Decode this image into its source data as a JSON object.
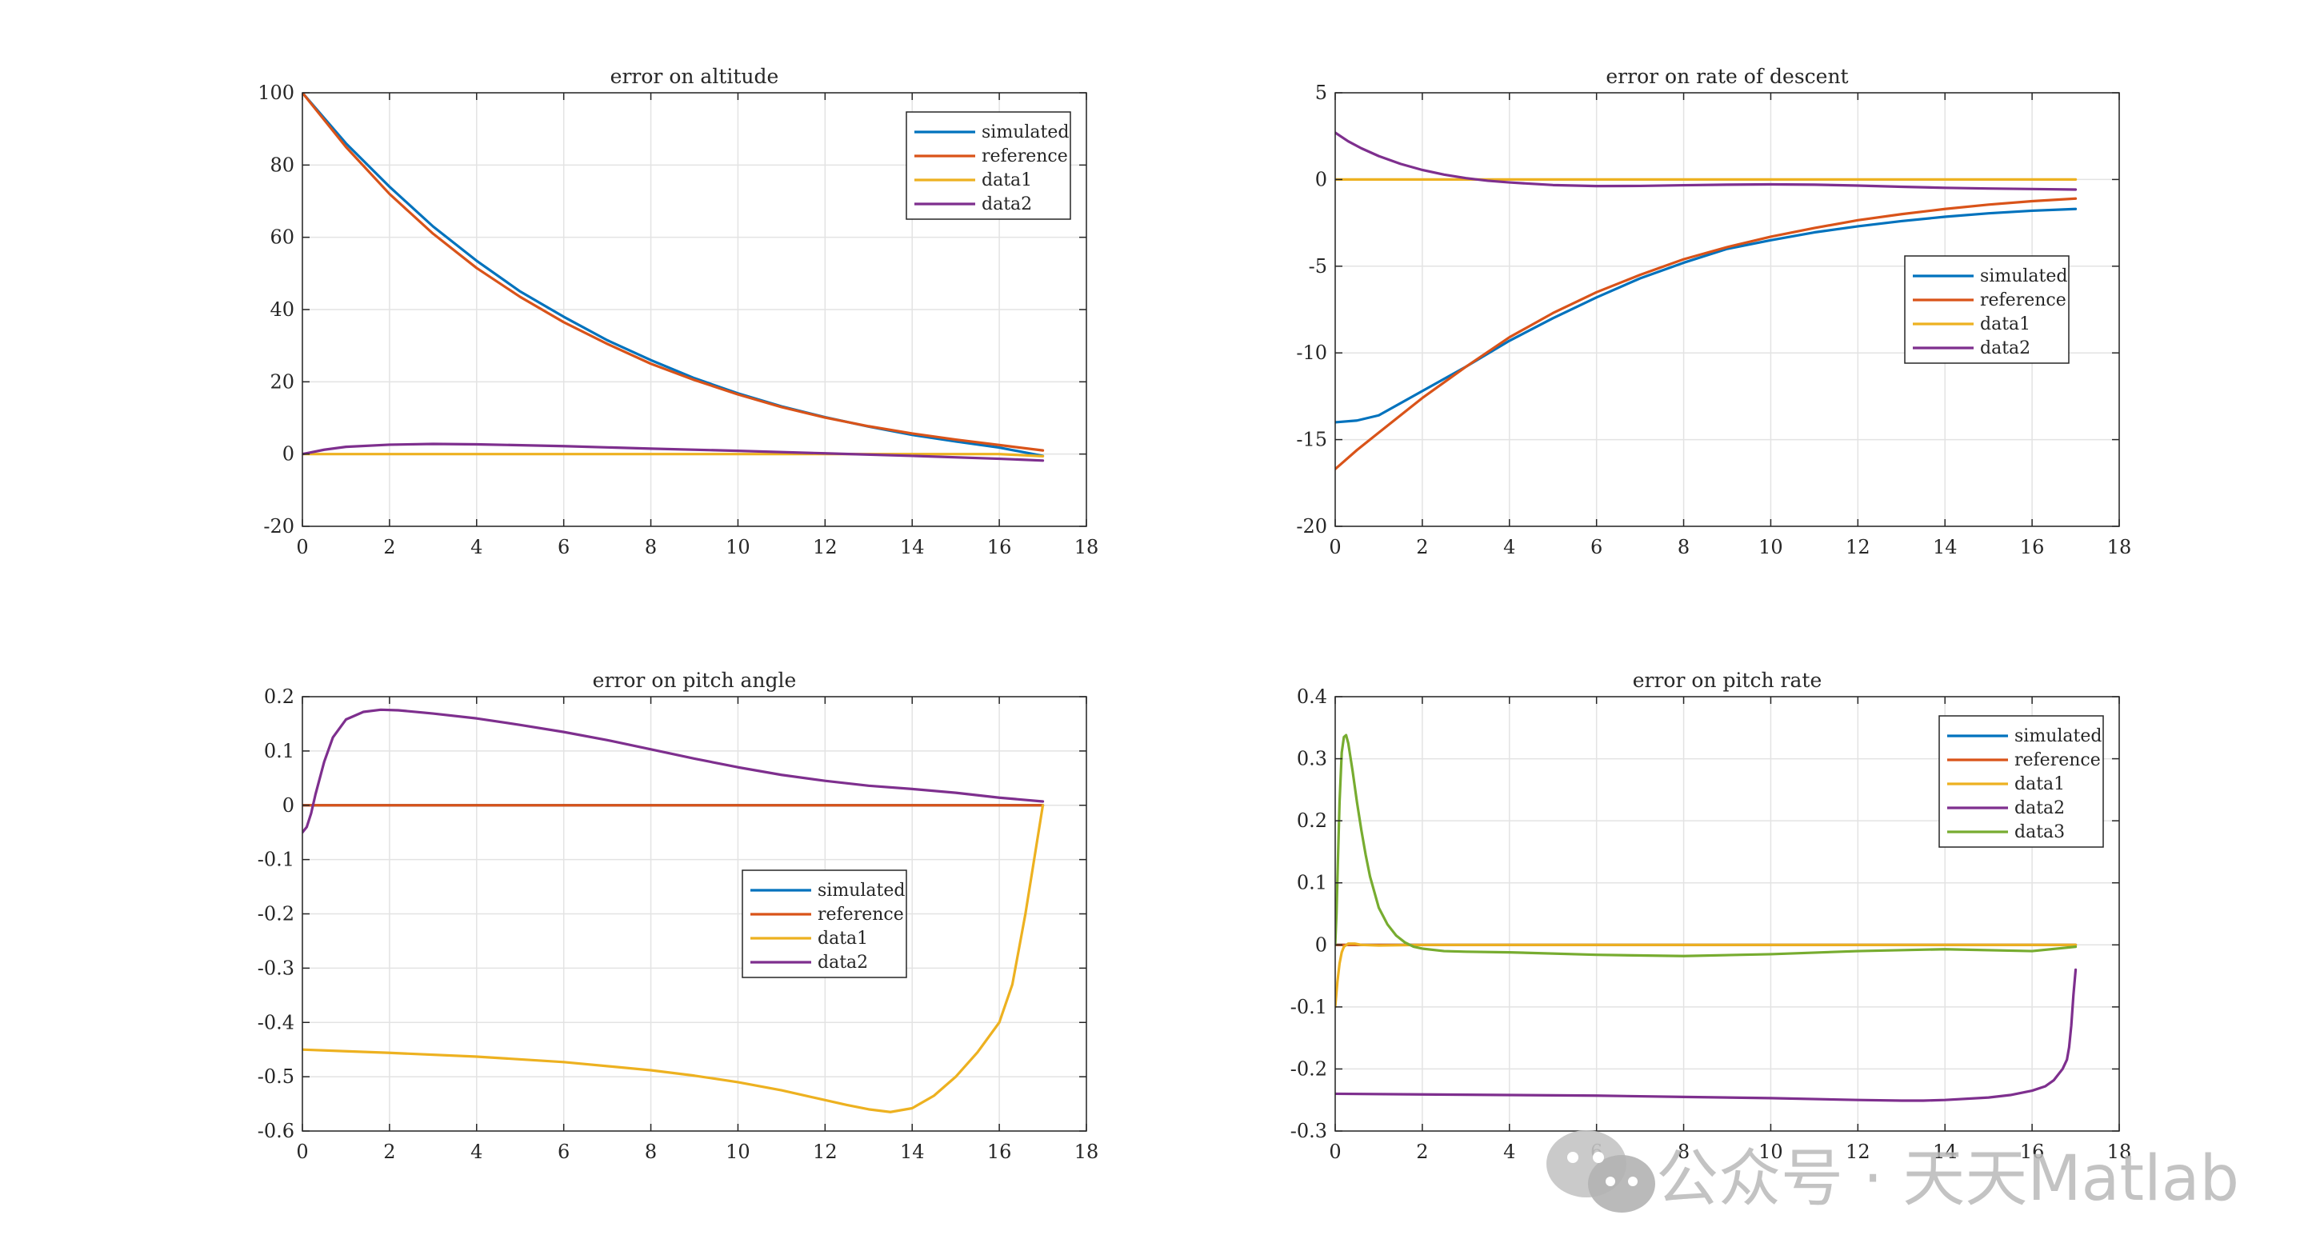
{
  "chart_data": [
    {
      "type": "line",
      "title": "error on altitude",
      "xlim": [
        0,
        18
      ],
      "ylim": [
        -20,
        100
      ],
      "xticks": [
        "0",
        "2",
        "4",
        "6",
        "8",
        "10",
        "12",
        "14",
        "16",
        "18"
      ],
      "yticks": [
        "-20",
        "0",
        "20",
        "40",
        "60",
        "80",
        "100"
      ],
      "grid": true,
      "legend_position": "top-right",
      "series": [
        {
          "name": "simulated",
          "color": "#0072BD",
          "x": [
            0,
            1,
            2,
            3,
            4,
            5,
            6,
            7,
            8,
            9,
            10,
            11,
            12,
            13,
            14,
            15,
            16,
            17
          ],
          "y": [
            100,
            86,
            74,
            63,
            53.5,
            45,
            38,
            31.5,
            26,
            21,
            16.8,
            13.2,
            10.2,
            7.6,
            5.3,
            3.5,
            1.8,
            -0.5
          ]
        },
        {
          "name": "reference",
          "color": "#D95319",
          "x": [
            0,
            1,
            2,
            3,
            4,
            5,
            6,
            7,
            8,
            9,
            10,
            11,
            12,
            13,
            14,
            15,
            16,
            17
          ],
          "y": [
            100,
            85,
            72,
            61,
            51.5,
            43.5,
            36.5,
            30.5,
            25,
            20.5,
            16.5,
            13,
            10.1,
            7.7,
            5.7,
            4.0,
            2.5,
            1.0
          ]
        },
        {
          "name": "data1",
          "color": "#EDB120",
          "x": [
            0,
            2,
            4,
            6,
            8,
            10,
            12,
            14,
            16,
            17
          ],
          "y": [
            0,
            0,
            0,
            0,
            0,
            0,
            0,
            0,
            0,
            -0.6
          ]
        },
        {
          "name": "data2",
          "color": "#7E2F8E",
          "x": [
            0,
            0.5,
            1,
            2,
            3,
            4,
            6,
            8,
            10,
            12,
            14,
            16,
            17
          ],
          "y": [
            0,
            1.2,
            2.0,
            2.6,
            2.8,
            2.7,
            2.2,
            1.5,
            0.9,
            0.2,
            -0.5,
            -1.3,
            -1.8
          ]
        }
      ]
    },
    {
      "type": "line",
      "title": "error on rate of descent",
      "xlim": [
        0,
        18
      ],
      "ylim": [
        -20,
        5
      ],
      "xticks": [
        "0",
        "2",
        "4",
        "6",
        "8",
        "10",
        "12",
        "14",
        "16",
        "18"
      ],
      "yticks": [
        "-20",
        "-15",
        "-10",
        "-5",
        "0",
        "5"
      ],
      "grid": true,
      "legend_position": "right",
      "series": [
        {
          "name": "simulated",
          "color": "#0072BD",
          "x": [
            0,
            0.5,
            1,
            2,
            3,
            4,
            5,
            6,
            7,
            8,
            9,
            10,
            11,
            12,
            13,
            14,
            15,
            16,
            17
          ],
          "y": [
            -14,
            -13.9,
            -13.6,
            -12.2,
            -10.8,
            -9.3,
            -8.0,
            -6.8,
            -5.7,
            -4.8,
            -4.0,
            -3.5,
            -3.05,
            -2.7,
            -2.4,
            -2.15,
            -1.95,
            -1.8,
            -1.7
          ]
        },
        {
          "name": "reference",
          "color": "#D95319",
          "x": [
            0,
            0.5,
            1,
            2,
            3,
            4,
            5,
            6,
            7,
            8,
            9,
            10,
            11,
            12,
            13,
            14,
            15,
            16,
            17
          ],
          "y": [
            -16.7,
            -15.6,
            -14.6,
            -12.6,
            -10.8,
            -9.1,
            -7.7,
            -6.5,
            -5.5,
            -4.6,
            -3.9,
            -3.3,
            -2.8,
            -2.35,
            -2.0,
            -1.7,
            -1.45,
            -1.25,
            -1.1
          ]
        },
        {
          "name": "data1",
          "color": "#EDB120",
          "x": [
            0,
            2,
            4,
            6,
            8,
            10,
            12,
            14,
            16,
            17
          ],
          "y": [
            0,
            0,
            0,
            0,
            0,
            0,
            0,
            0,
            0,
            0
          ]
        },
        {
          "name": "data2",
          "color": "#7E2F8E",
          "x": [
            0,
            0.3,
            0.6,
            1,
            1.5,
            2,
            2.5,
            3,
            3.5,
            4,
            5,
            6,
            7,
            8,
            9,
            10,
            11,
            12,
            13,
            14,
            15,
            16,
            17
          ],
          "y": [
            2.7,
            2.2,
            1.8,
            1.35,
            0.9,
            0.55,
            0.28,
            0.08,
            -0.07,
            -0.17,
            -0.32,
            -0.38,
            -0.37,
            -0.33,
            -0.3,
            -0.28,
            -0.3,
            -0.35,
            -0.42,
            -0.48,
            -0.52,
            -0.55,
            -0.58
          ]
        }
      ]
    },
    {
      "type": "line",
      "title": "error on pitch angle",
      "xlim": [
        0,
        18
      ],
      "ylim": [
        -0.6,
        0.2
      ],
      "xticks": [
        "0",
        "2",
        "4",
        "6",
        "8",
        "10",
        "12",
        "14",
        "16",
        "18"
      ],
      "yticks": [
        "-0.6",
        "-0.5",
        "-0.4",
        "-0.3",
        "-0.2",
        "-0.1",
        "0",
        "0.1",
        "0.2"
      ],
      "grid": true,
      "legend_position": "center",
      "series": [
        {
          "name": "simulated",
          "color": "#0072BD",
          "x": [
            0,
            17
          ],
          "y": [
            0,
            0
          ]
        },
        {
          "name": "reference",
          "color": "#D95319",
          "x": [
            0,
            17
          ],
          "y": [
            0,
            0
          ]
        },
        {
          "name": "data1",
          "color": "#EDB120",
          "x": [
            0,
            1,
            2,
            4,
            6,
            8,
            9,
            10,
            11,
            12,
            12.5,
            13,
            13.5,
            14,
            14.5,
            15,
            15.5,
            16,
            16.3,
            16.6,
            16.8,
            17
          ],
          "y": [
            -0.45,
            -0.453,
            -0.456,
            -0.463,
            -0.473,
            -0.488,
            -0.498,
            -0.51,
            -0.525,
            -0.543,
            -0.552,
            -0.56,
            -0.565,
            -0.558,
            -0.535,
            -0.5,
            -0.455,
            -0.4,
            -0.33,
            -0.2,
            -0.1,
            0
          ]
        },
        {
          "name": "data2",
          "color": "#7E2F8E",
          "x": [
            0,
            0.1,
            0.2,
            0.3,
            0.5,
            0.7,
            1.0,
            1.4,
            1.8,
            2.2,
            3,
            4,
            5,
            6,
            7,
            8,
            9,
            10,
            11,
            12,
            13,
            14,
            15,
            16,
            17
          ],
          "y": [
            -0.05,
            -0.04,
            -0.015,
            0.02,
            0.08,
            0.125,
            0.158,
            0.172,
            0.176,
            0.175,
            0.169,
            0.16,
            0.148,
            0.135,
            0.12,
            0.103,
            0.086,
            0.07,
            0.056,
            0.045,
            0.036,
            0.03,
            0.023,
            0.014,
            0.007
          ]
        }
      ]
    },
    {
      "type": "line",
      "title": "error on pitch rate",
      "xlim": [
        0,
        18
      ],
      "ylim": [
        -0.3,
        0.4
      ],
      "xticks": [
        "0",
        "2",
        "4",
        "6",
        "8",
        "10",
        "12",
        "14",
        "16",
        "18"
      ],
      "yticks": [
        "-0.3",
        "-0.2",
        "-0.1",
        "0",
        "0.1",
        "0.2",
        "0.3",
        "0.4"
      ],
      "grid": true,
      "legend_position": "top-right",
      "series": [
        {
          "name": "simulated",
          "color": "#0072BD",
          "x": [
            0,
            17
          ],
          "y": [
            0,
            0
          ]
        },
        {
          "name": "reference",
          "color": "#D95319",
          "x": [
            0,
            17
          ],
          "y": [
            0,
            0
          ]
        },
        {
          "name": "data1",
          "color": "#EDB120",
          "x": [
            0,
            0.05,
            0.1,
            0.15,
            0.2,
            0.3,
            0.45,
            0.6,
            1,
            2,
            4,
            8,
            12,
            16,
            17
          ],
          "y": [
            -0.1,
            -0.06,
            -0.03,
            -0.012,
            -0.003,
            0.002,
            0.002,
            0,
            -0.001,
            0,
            0,
            0,
            0,
            0,
            0
          ]
        },
        {
          "name": "data2",
          "color": "#7E2F8E",
          "x": [
            0,
            2,
            4,
            6,
            8,
            10,
            12,
            13,
            13.5,
            14,
            15,
            15.5,
            16,
            16.3,
            16.5,
            16.7,
            16.8,
            16.85,
            16.9,
            16.95,
            17
          ],
          "y": [
            -0.24,
            -0.241,
            -0.242,
            -0.243,
            -0.245,
            -0.247,
            -0.25,
            -0.251,
            -0.251,
            -0.25,
            -0.246,
            -0.242,
            -0.235,
            -0.228,
            -0.218,
            -0.2,
            -0.185,
            -0.165,
            -0.13,
            -0.08,
            -0.04
          ]
        },
        {
          "name": "data3",
          "color": "#77AC30",
          "x": [
            0,
            0.03,
            0.06,
            0.1,
            0.15,
            0.2,
            0.25,
            0.3,
            0.4,
            0.5,
            0.6,
            0.7,
            0.8,
            0.9,
            1.0,
            1.2,
            1.4,
            1.6,
            1.8,
            2.0,
            2.5,
            3,
            4,
            6,
            8,
            10,
            12,
            14,
            16,
            17
          ],
          "y": [
            0,
            0.05,
            0.13,
            0.23,
            0.31,
            0.335,
            0.338,
            0.325,
            0.28,
            0.23,
            0.185,
            0.145,
            0.11,
            0.085,
            0.06,
            0.033,
            0.015,
            0.004,
            -0.003,
            -0.006,
            -0.01,
            -0.011,
            -0.012,
            -0.016,
            -0.018,
            -0.015,
            -0.01,
            -0.007,
            -0.01,
            -0.003
          ]
        }
      ]
    }
  ],
  "watermark": {
    "text": "公众号 · 天天Matlab",
    "icon": "wechat-icon"
  }
}
